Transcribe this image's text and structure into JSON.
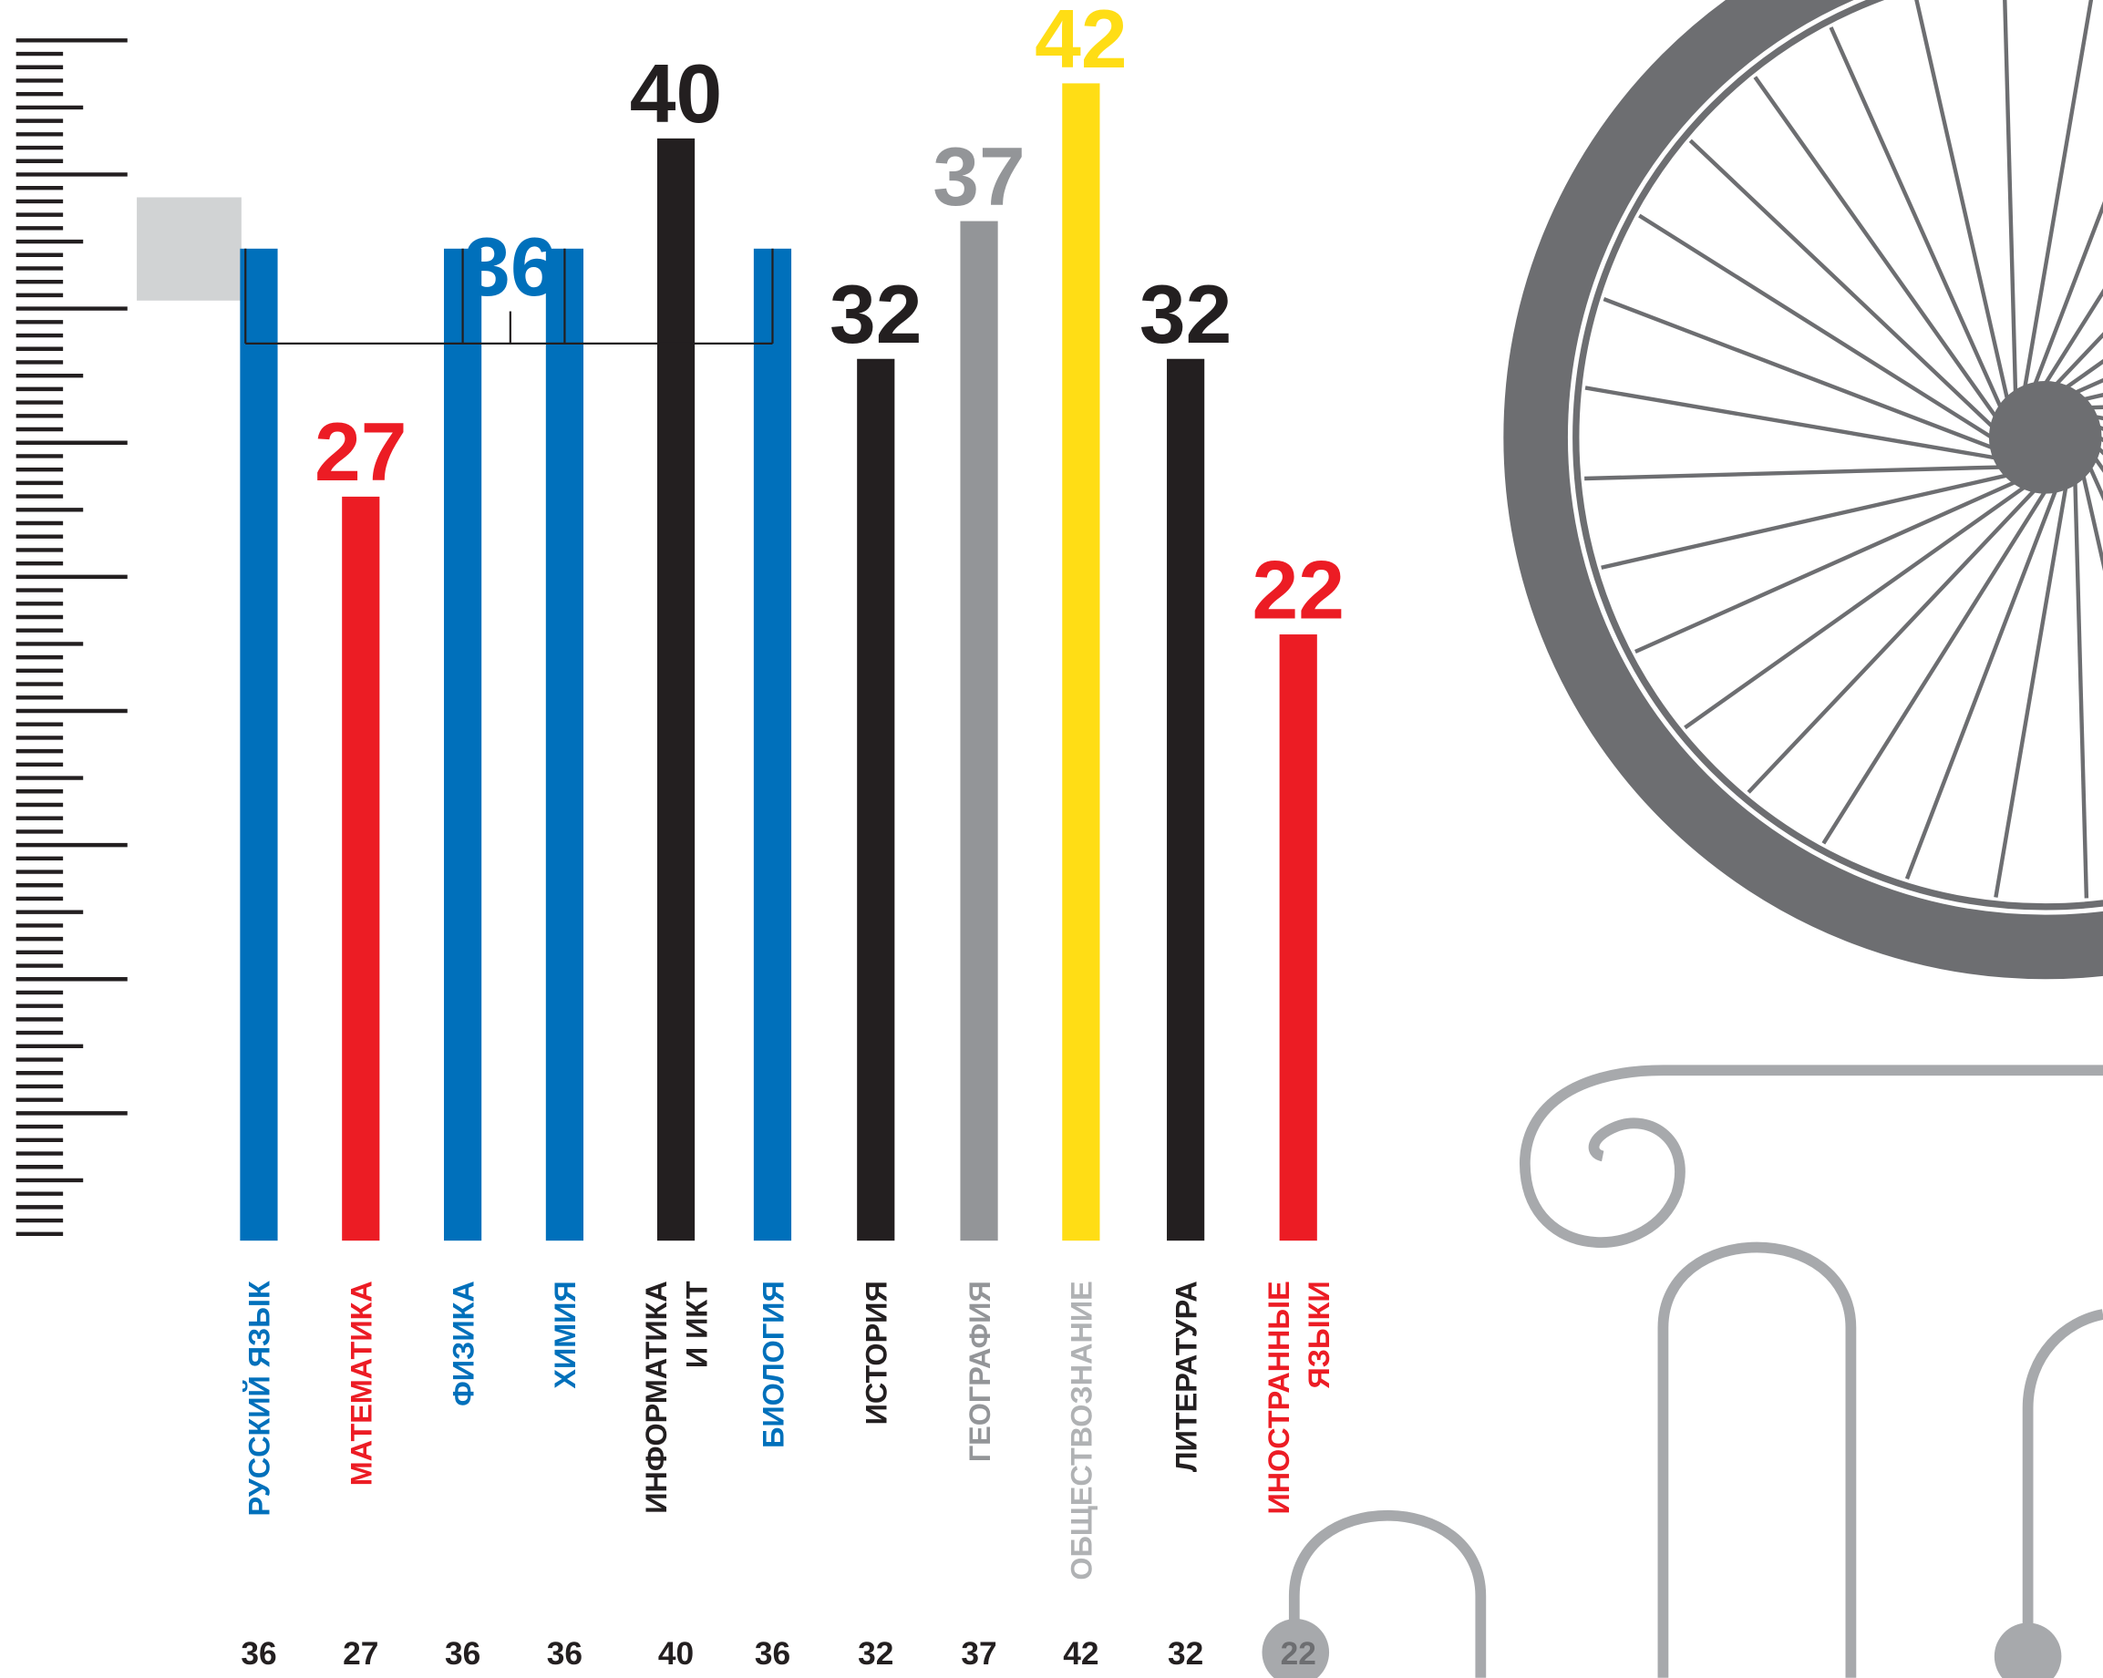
{
  "chart_data": {
    "type": "bar",
    "categories": [
      "РУССКИЙ ЯЗЫК",
      "МАТЕМАТИКА",
      "ФИЗИКА",
      "ХИМИЯ",
      "ИНФОРМАТИКА\nИ ИКТ",
      "БИОЛОГИЯ",
      "ИСТОРИЯ",
      "ГЕОГРАФИЯ",
      "ОБЩЕСТВОЗНАНИЕ",
      "ЛИТЕРАТУРА",
      "ИНОСТРАННЫЕ\nЯЗЫКИ"
    ],
    "values": [
      36,
      27,
      36,
      36,
      40,
      36,
      32,
      37,
      42,
      32,
      22
    ],
    "colors": [
      "#0070bb",
      "#ec1c24",
      "#0070bb",
      "#0070bb",
      "#231f20",
      "#0070bb",
      "#231f20",
      "#939598",
      "#ffdd15",
      "#231f20",
      "#ec1c24"
    ],
    "label_colors": [
      "#0070bb",
      "#ec1c24",
      "#0070bb",
      "#0070bb",
      "#231f20",
      "#0070bb",
      "#231f20",
      "#939598",
      "#b0b2b4",
      "#231f20",
      "#ec1c24"
    ]
  }
}
